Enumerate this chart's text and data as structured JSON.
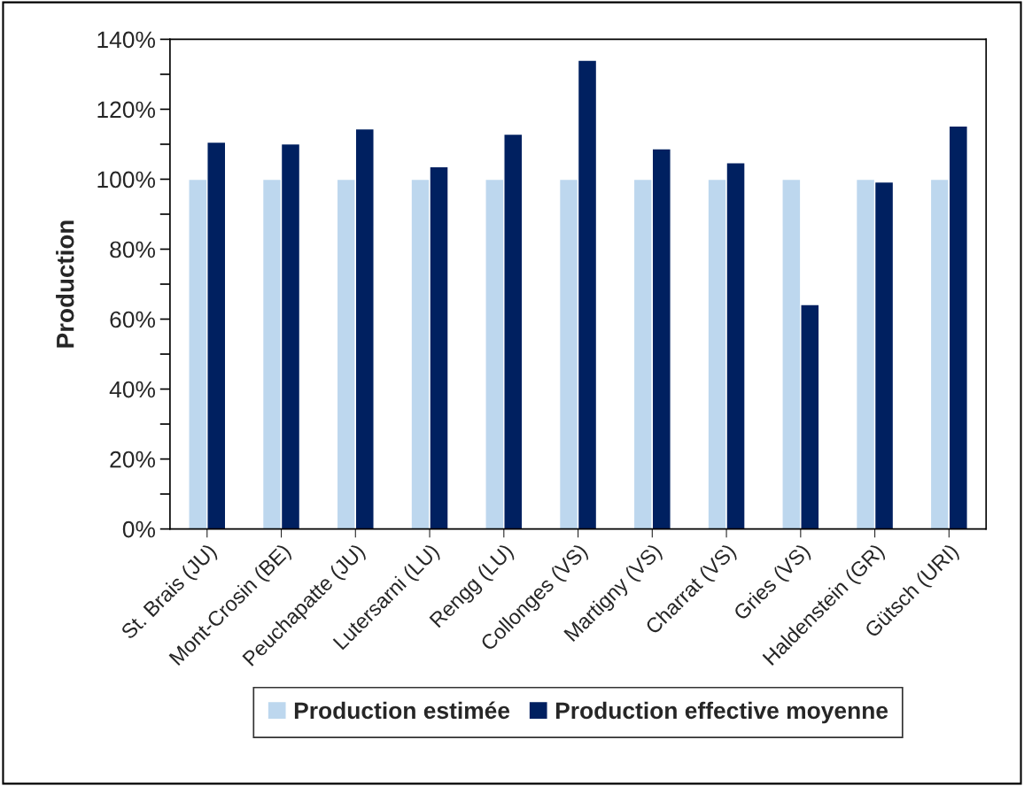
{
  "chart_data": {
    "type": "bar",
    "ylabel": "Production",
    "categories": [
      "St. Brais (JU)",
      "Mont-Crosin (BE)",
      "Peuchapatte (JU)",
      "Lutersarni (LU)",
      "Rengg (LU)",
      "Collonges (VS)",
      "Martigny (VS)",
      "Charrat (VS)",
      "Gries (VS)",
      "Haldenstein (GR)",
      "Gütsch (URI)"
    ],
    "series": [
      {
        "name": "Production estimée",
        "color": "#bdd7ee",
        "values": [
          100,
          100,
          100,
          100,
          100,
          100,
          100,
          100,
          100,
          100,
          100
        ]
      },
      {
        "name": "Production effective moyenne",
        "color": "#002060",
        "values": [
          110.6,
          110.1,
          114.4,
          103.6,
          112.9,
          134.0,
          108.7,
          104.7,
          64.2,
          99.2,
          115.2
        ]
      }
    ],
    "ylim": [
      0,
      140
    ],
    "yticks": [
      {
        "value": 0,
        "label": "0%"
      },
      {
        "value": 10,
        "label": null
      },
      {
        "value": 20,
        "label": "20%"
      },
      {
        "value": 30,
        "label": null
      },
      {
        "value": 40,
        "label": "40%"
      },
      {
        "value": 50,
        "label": null
      },
      {
        "value": 60,
        "label": "60%"
      },
      {
        "value": 70,
        "label": null
      },
      {
        "value": 80,
        "label": "80%"
      },
      {
        "value": 90,
        "label": null
      },
      {
        "value": 100,
        "label": "100%"
      },
      {
        "value": 110,
        "label": null
      },
      {
        "value": 120,
        "label": "120%"
      },
      {
        "value": 130,
        "label": null
      },
      {
        "value": 140,
        "label": "140%"
      }
    ],
    "grid": false,
    "legend": "bottom"
  }
}
